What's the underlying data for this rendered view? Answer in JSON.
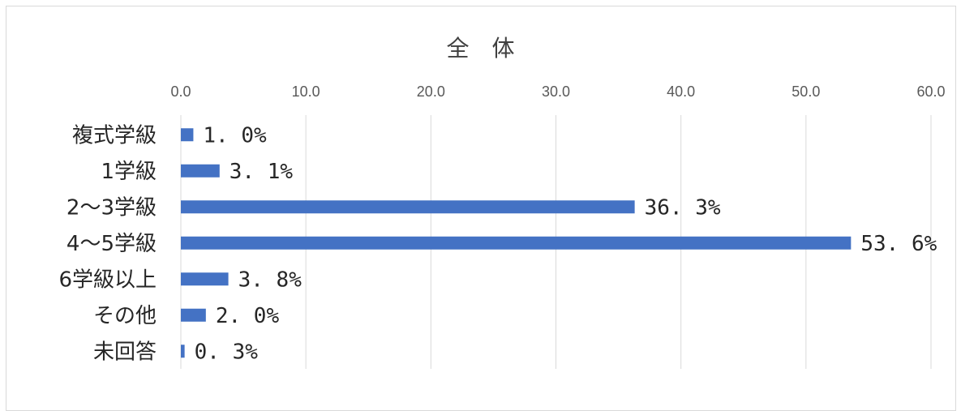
{
  "chart_data": {
    "type": "bar",
    "orientation": "horizontal",
    "title": "全　体",
    "xlim": [
      0,
      60
    ],
    "x_ticks": [
      "0.0",
      "10.0",
      "20.0",
      "30.0",
      "40.0",
      "50.0",
      "60.0"
    ],
    "x_tick_values": [
      0,
      10,
      20,
      30,
      40,
      50,
      60
    ],
    "x_axis_position": "top",
    "grid": true,
    "categories": [
      "複式学級",
      "1学級",
      "2～3学級",
      "4～5学級",
      "6学級以上",
      "その他",
      "未回答"
    ],
    "values": [
      1.0,
      3.1,
      36.3,
      53.6,
      3.8,
      2.0,
      0.3
    ],
    "data_labels": [
      "1.0%",
      "3.1%",
      "36.3%",
      "53.6%",
      "3.8%",
      "2.0%",
      "0.3%"
    ],
    "bar_color": "#4472c4",
    "grid_color": "#d9d9d9"
  }
}
